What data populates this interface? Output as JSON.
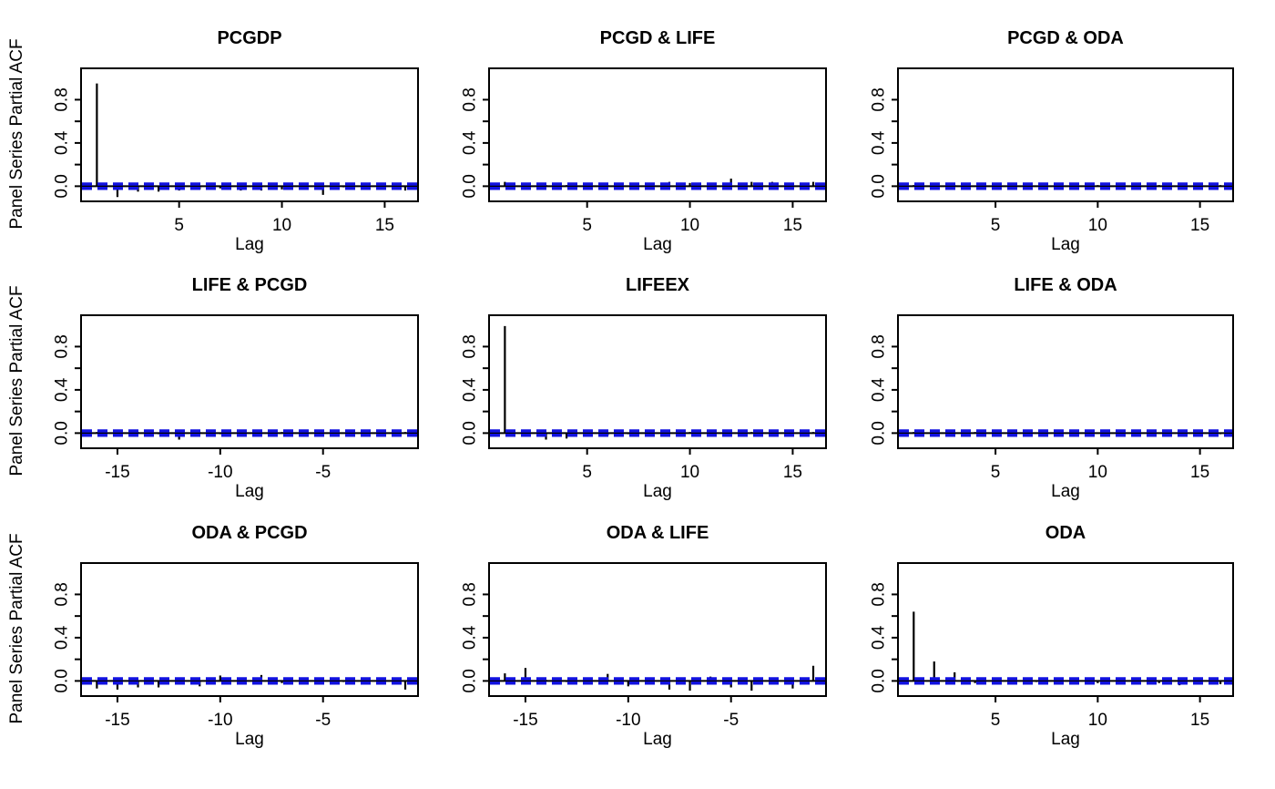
{
  "figure": {
    "background": "#ffffff",
    "ylab": "Panel Series Partial ACF",
    "xlab": "Lag",
    "axis_color": "#000000",
    "bar_color": "#000000",
    "ci_color": "#1212e0",
    "ci_value": 0.02,
    "ylim": [
      -0.14,
      1.09
    ],
    "yticks": [
      {
        "v": 0.0,
        "label": "0.0"
      },
      {
        "v": 0.2,
        "label": ""
      },
      {
        "v": 0.4,
        "label": "0.4"
      },
      {
        "v": 0.6,
        "label": ""
      },
      {
        "v": 0.8,
        "label": "0.8"
      }
    ]
  },
  "chart_data": [
    {
      "type": "bar",
      "title": "PCGDP",
      "row": 0,
      "col": 0,
      "lag_start": 1,
      "xticks": [
        5,
        10,
        15
      ],
      "xlabel": "Lag",
      "values": [
        0.95,
        -0.1,
        -0.05,
        -0.05,
        -0.04,
        -0.03,
        -0.02,
        -0.04,
        -0.04,
        -0.03,
        -0.02,
        -0.08,
        -0.01,
        -0.02,
        -0.01,
        -0.04
      ]
    },
    {
      "type": "bar",
      "title": "PCGD & LIFE",
      "row": 0,
      "col": 1,
      "lag_start": 1,
      "xticks": [
        5,
        10,
        15
      ],
      "xlabel": "Lag",
      "values": [
        0.04,
        0.02,
        0.01,
        0.01,
        0.01,
        0.01,
        0.0,
        0.02,
        0.04,
        0.03,
        0.03,
        0.07,
        0.04,
        0.04,
        0.01,
        0.04
      ]
    },
    {
      "type": "bar",
      "title": "PCGD & ODA",
      "row": 0,
      "col": 2,
      "lag_start": 1,
      "xticks": [
        5,
        10,
        15
      ],
      "xlabel": "Lag",
      "values": [
        0.01,
        -0.01,
        0.01,
        0.0,
        0.01,
        -0.01,
        0.0,
        -0.01,
        0.0,
        0.01,
        -0.01,
        0.0,
        0.01,
        0.01,
        -0.01,
        0.01
      ]
    },
    {
      "type": "bar",
      "title": "LIFE & PCGD",
      "row": 1,
      "col": 0,
      "lag_start": -16,
      "xticks": [
        -15,
        -10,
        -5
      ],
      "xlabel": "Lag",
      "values": [
        0.01,
        -0.01,
        0.01,
        -0.01,
        -0.06,
        0.01,
        -0.01,
        0.0,
        -0.01,
        0.01,
        -0.01,
        0.01,
        0.0,
        0.01,
        -0.01,
        0.01
      ]
    },
    {
      "type": "bar",
      "title": "LIFEEX",
      "row": 1,
      "col": 1,
      "lag_start": 1,
      "xticks": [
        5,
        10,
        15
      ],
      "xlabel": "Lag",
      "values": [
        0.99,
        -0.01,
        -0.06,
        -0.05,
        -0.02,
        -0.02,
        -0.01,
        0.0,
        0.01,
        0.01,
        0.0,
        0.02,
        0.01,
        0.0,
        0.0,
        0.01
      ]
    },
    {
      "type": "bar",
      "title": "LIFE & ODA",
      "row": 1,
      "col": 2,
      "lag_start": 1,
      "xticks": [
        5,
        10,
        15
      ],
      "xlabel": "Lag",
      "values": [
        0.01,
        0.0,
        -0.01,
        0.01,
        0.0,
        -0.01,
        0.0,
        0.01,
        -0.01,
        0.0,
        0.01,
        -0.01,
        0.0,
        0.01,
        0.0,
        -0.01
      ]
    },
    {
      "type": "bar",
      "title": "ODA & PCGD",
      "row": 2,
      "col": 0,
      "lag_start": -16,
      "xticks": [
        -15,
        -10,
        -5
      ],
      "xlabel": "Lag",
      "values": [
        -0.07,
        -0.08,
        -0.06,
        -0.06,
        -0.02,
        -0.05,
        0.05,
        0.01,
        0.055,
        -0.02,
        -0.01,
        -0.03,
        -0.01,
        -0.02,
        0.01,
        -0.08
      ]
    },
    {
      "type": "bar",
      "title": "ODA & LIFE",
      "row": 2,
      "col": 1,
      "lag_start": -16,
      "xticks": [
        -15,
        -10,
        -5
      ],
      "xlabel": "Lag",
      "values": [
        0.07,
        0.12,
        0.01,
        -0.01,
        0.01,
        0.065,
        -0.05,
        0.01,
        -0.08,
        -0.09,
        0.04,
        -0.06,
        -0.09,
        -0.01,
        -0.07,
        0.14
      ]
    },
    {
      "type": "bar",
      "title": "ODA",
      "row": 2,
      "col": 2,
      "lag_start": 1,
      "xticks": [
        5,
        10,
        15
      ],
      "xlabel": "Lag",
      "values": [
        0.64,
        0.18,
        0.08,
        -0.02,
        -0.01,
        -0.03,
        -0.01,
        -0.02,
        -0.01,
        -0.02,
        -0.03,
        -0.01,
        -0.02,
        -0.04,
        -0.01,
        -0.03
      ]
    }
  ]
}
